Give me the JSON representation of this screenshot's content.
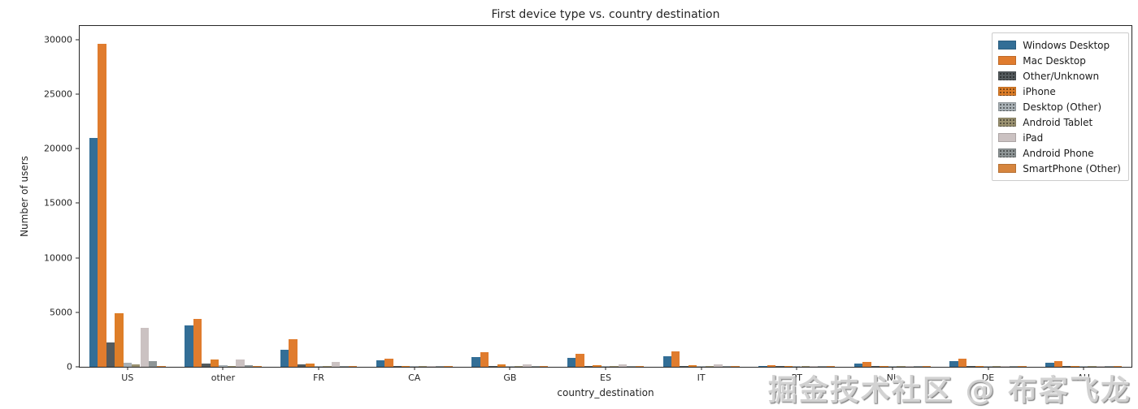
{
  "watermark": {
    "text": "掘金技术社区 @ 布客飞龙"
  },
  "chart_data": {
    "type": "bar",
    "title": "First device type vs. country destination",
    "xlabel": "country_destination",
    "ylabel": "Number of users",
    "grid": false,
    "legend_position": "upper right",
    "ylim": [
      0,
      31250
    ],
    "yticks": [
      0,
      5000,
      10000,
      15000,
      20000,
      25000,
      30000
    ],
    "categories": [
      "US",
      "other",
      "FR",
      "CA",
      "GB",
      "ES",
      "IT",
      "PT",
      "NL",
      "DE",
      "AU"
    ],
    "series": [
      {
        "name": "Windows Desktop",
        "color": "#336e96",
        "hatch": "none",
        "values": [
          21000,
          3800,
          1600,
          600,
          900,
          800,
          1000,
          100,
          280,
          550,
          350
        ]
      },
      {
        "name": "Mac Desktop",
        "color": "#e07c2e",
        "hatch": "none",
        "values": [
          29650,
          4400,
          2550,
          720,
          1350,
          1200,
          1450,
          120,
          480,
          720,
          540
        ]
      },
      {
        "name": "Other/Unknown",
        "color": "#545a5d",
        "hatch": "dots",
        "values": [
          2200,
          300,
          220,
          70,
          100,
          90,
          110,
          15,
          25,
          40,
          30
        ]
      },
      {
        "name": "iPhone",
        "color": "#de7e28",
        "hatch": "dots",
        "values": [
          4900,
          700,
          320,
          110,
          250,
          150,
          180,
          20,
          45,
          65,
          50
        ]
      },
      {
        "name": "Desktop (Other)",
        "color": "#a9b1b6",
        "hatch": "dots",
        "values": [
          350,
          130,
          60,
          25,
          35,
          30,
          35,
          8,
          12,
          18,
          12
        ]
      },
      {
        "name": "Android Tablet",
        "color": "#9b9271",
        "hatch": "dots",
        "values": [
          200,
          70,
          35,
          15,
          20,
          18,
          20,
          5,
          7,
          9,
          7
        ]
      },
      {
        "name": "iPad",
        "color": "#cbc2c2",
        "hatch": "none",
        "values": [
          3600,
          640,
          450,
          110,
          230,
          200,
          220,
          15,
          70,
          95,
          80
        ]
      },
      {
        "name": "Android Phone",
        "color": "#8e9596",
        "hatch": "dots",
        "values": [
          550,
          150,
          80,
          25,
          45,
          35,
          40,
          8,
          12,
          18,
          12
        ]
      },
      {
        "name": "SmartPhone (Other)",
        "color": "#d6853e",
        "hatch": "none",
        "values": [
          70,
          25,
          12,
          5,
          8,
          6,
          8,
          2,
          3,
          4,
          3
        ]
      }
    ]
  }
}
